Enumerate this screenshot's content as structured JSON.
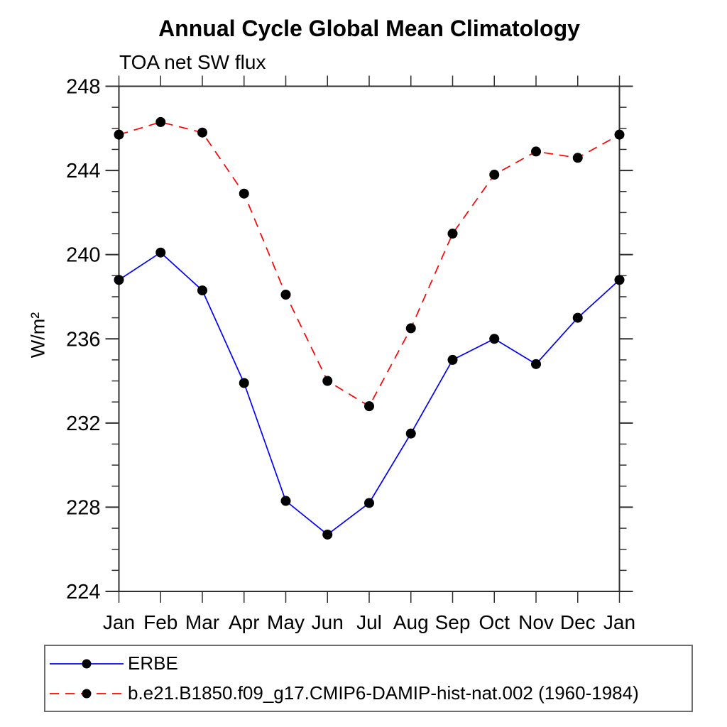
{
  "chart_data": {
    "type": "line",
    "title": "Annual Cycle Global Mean Climatology",
    "subtitle": "TOA net SW flux",
    "ylabel": "W/m²",
    "categories": [
      "Jan",
      "Feb",
      "Mar",
      "Apr",
      "May",
      "Jun",
      "Jul",
      "Aug",
      "Sep",
      "Oct",
      "Nov",
      "Dec",
      "Jan"
    ],
    "ylim": [
      224,
      248
    ],
    "ytick_major_step": 4,
    "ytick_minor_step": 1,
    "ytick_major_labels": [
      "224",
      "228",
      "232",
      "236",
      "240",
      "244",
      "248"
    ],
    "grid": false,
    "legend_position": "bottom-left",
    "axis_color": "#2f2f2f",
    "text_color": "#000000",
    "series": [
      {
        "name": "ERBE",
        "color": "#0000ff",
        "line_style": "solid",
        "marker": "circle",
        "marker_color": "#000000",
        "values": [
          238.8,
          240.1,
          238.3,
          233.9,
          228.3,
          226.7,
          228.2,
          231.5,
          235.0,
          236.0,
          234.8,
          237.0,
          238.8
        ]
      },
      {
        "name": "b.e21.B1850.f09_g17.CMIP6-DAMIP-hist-nat.002 (1960-1984)",
        "color": "#ff0000",
        "line_style": "dashed",
        "marker": "circle",
        "marker_color": "#000000",
        "values": [
          245.7,
          246.3,
          245.8,
          242.9,
          238.1,
          234.0,
          232.8,
          236.5,
          241.0,
          243.8,
          244.9,
          244.6,
          245.7
        ]
      }
    ]
  }
}
